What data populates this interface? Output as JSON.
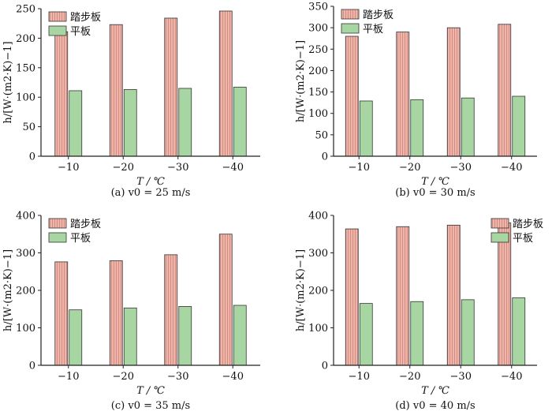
{
  "colors": {
    "stepped": "#f2b3a8",
    "flat": "#a8d6a3",
    "axis": "#222222"
  },
  "chart_data": [
    {
      "type": "bar",
      "categories": [
        "−10",
        "−20",
        "−30",
        "−40"
      ],
      "series": [
        {
          "name": "踏步板",
          "values": [
            211,
            223,
            234,
            246
          ]
        },
        {
          "name": "平板",
          "values": [
            111,
            113,
            115,
            117
          ]
        }
      ],
      "yticks": [
        0,
        50,
        100,
        150,
        200,
        250
      ],
      "ylim": [
        0,
        250
      ],
      "xlabel": "T / ℃",
      "ylabel": "h/[W·(m2·K)−1]",
      "caption": "(a) v0 = 25 m/s",
      "legend": "top-left"
    },
    {
      "type": "bar",
      "categories": [
        "−10",
        "−20",
        "−30",
        "−40"
      ],
      "series": [
        {
          "name": "踏步板",
          "values": [
            280,
            290,
            300,
            308
          ]
        },
        {
          "name": "平板",
          "values": [
            129,
            132,
            136,
            140
          ]
        }
      ],
      "yticks": [
        0,
        50,
        100,
        150,
        200,
        250,
        300,
        350
      ],
      "ylim": [
        0,
        350
      ],
      "xlabel": "T / ℃",
      "ylabel": "h/[W·(m2·K)−1]",
      "caption": "(b) v0 = 30 m/s",
      "legend": "top-left"
    },
    {
      "type": "bar",
      "categories": [
        "−10",
        "−20",
        "−30",
        "−40"
      ],
      "series": [
        {
          "name": "踏步板",
          "values": [
            276,
            279,
            295,
            350
          ]
        },
        {
          "name": "平板",
          "values": [
            148,
            153,
            157,
            160
          ]
        }
      ],
      "yticks": [
        0,
        100,
        200,
        300,
        400
      ],
      "ylim": [
        0,
        400
      ],
      "xlabel": "T / ℃",
      "ylabel": "h/[W·(m2·K)−1]",
      "caption": "(c) v0 = 35 m/s",
      "legend": "top-left"
    },
    {
      "type": "bar",
      "categories": [
        "−10",
        "−20",
        "−30",
        "−40"
      ],
      "series": [
        {
          "name": "踏步板",
          "values": [
            364,
            370,
            374,
            380
          ]
        },
        {
          "name": "平板",
          "values": [
            165,
            170,
            175,
            180
          ]
        }
      ],
      "yticks": [
        0,
        100,
        200,
        300,
        400
      ],
      "ylim": [
        0,
        400
      ],
      "xlabel": "T / ℃",
      "ylabel": "h/[W·(m2·K)−1]",
      "caption": "(d) v0 = 40 m/s",
      "legend": "top-right"
    }
  ]
}
